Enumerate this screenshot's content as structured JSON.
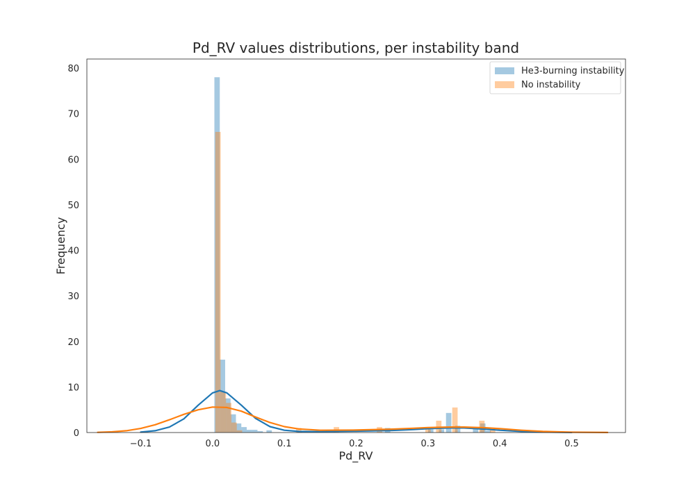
{
  "chart_data": {
    "type": "bar",
    "title": "Pd_RV values distributions, per instability band",
    "xlabel": "Pd_RV",
    "ylabel": "Frequency",
    "xlim": [
      -0.175,
      0.575
    ],
    "ylim": [
      0,
      82
    ],
    "xticks": [
      -0.1,
      0.0,
      0.1,
      0.2,
      0.3,
      0.4,
      0.5
    ],
    "xtick_labels": [
      "−0.1",
      "0.0",
      "0.1",
      "0.2",
      "0.3",
      "0.4",
      "0.5"
    ],
    "yticks": [
      0,
      10,
      20,
      30,
      40,
      50,
      60,
      70,
      80
    ],
    "grid": false,
    "legend_position": "top-right",
    "series": [
      {
        "name": "He3-burning instability",
        "color": "#1f77b4",
        "bin_width": 0.0075,
        "bins": [
          {
            "x": 0.0063,
            "y": 78
          },
          {
            "x": 0.0138,
            "y": 16
          },
          {
            "x": 0.0213,
            "y": 7.5
          },
          {
            "x": 0.0288,
            "y": 4
          },
          {
            "x": 0.0363,
            "y": 2
          },
          {
            "x": 0.0438,
            "y": 1.2
          },
          {
            "x": 0.0513,
            "y": 0.6
          },
          {
            "x": 0.0588,
            "y": 0.6
          },
          {
            "x": 0.0663,
            "y": 0.3
          },
          {
            "x": 0.0788,
            "y": 0.5
          },
          {
            "x": 0.1213,
            "y": 0.3
          },
          {
            "x": 0.2438,
            "y": 1
          },
          {
            "x": 0.3038,
            "y": 0.7
          },
          {
            "x": 0.3188,
            "y": 0.7
          },
          {
            "x": 0.3288,
            "y": 4.3
          },
          {
            "x": 0.3413,
            "y": 1.5
          },
          {
            "x": 0.3663,
            "y": 0.8
          },
          {
            "x": 0.3763,
            "y": 2
          },
          {
            "x": 0.3838,
            "y": 0.4
          }
        ],
        "kde": {
          "x": [
            -0.1,
            -0.08,
            -0.06,
            -0.04,
            -0.02,
            0.0,
            0.01,
            0.02,
            0.04,
            0.06,
            0.08,
            0.1,
            0.12,
            0.15,
            0.2,
            0.25,
            0.28,
            0.3,
            0.33,
            0.35,
            0.38,
            0.4,
            0.43,
            0.46,
            0.5
          ],
          "y": [
            0.1,
            0.4,
            1.2,
            3.0,
            6.0,
            8.7,
            9.2,
            8.7,
            6.0,
            3.1,
            1.3,
            0.5,
            0.25,
            0.2,
            0.3,
            0.45,
            0.65,
            0.85,
            1.0,
            1.0,
            0.75,
            0.5,
            0.25,
            0.1,
            0.02
          ]
        }
      },
      {
        "name": "No instability",
        "color": "#ff7f0e",
        "bin_width": 0.0075,
        "bins": [
          {
            "x": 0.0075,
            "y": 66
          },
          {
            "x": 0.015,
            "y": 9
          },
          {
            "x": 0.0225,
            "y": 6.5
          },
          {
            "x": 0.03,
            "y": 2.2
          },
          {
            "x": 0.0375,
            "y": 0.5
          },
          {
            "x": 0.12,
            "y": 1
          },
          {
            "x": 0.1725,
            "y": 1.2
          },
          {
            "x": 0.2325,
            "y": 1.2
          },
          {
            "x": 0.3,
            "y": 1
          },
          {
            "x": 0.315,
            "y": 2.6
          },
          {
            "x": 0.3375,
            "y": 5.5
          },
          {
            "x": 0.375,
            "y": 2.6
          },
          {
            "x": 0.39,
            "y": 0.5
          }
        ],
        "kde": {
          "x": [
            -0.16,
            -0.14,
            -0.12,
            -0.1,
            -0.08,
            -0.06,
            -0.04,
            -0.02,
            0.0,
            0.02,
            0.04,
            0.06,
            0.08,
            0.1,
            0.12,
            0.15,
            0.2,
            0.25,
            0.28,
            0.3,
            0.33,
            0.35,
            0.38,
            0.4,
            0.43,
            0.46,
            0.5,
            0.55
          ],
          "y": [
            0.05,
            0.15,
            0.4,
            0.9,
            1.7,
            2.8,
            4.0,
            5.0,
            5.6,
            5.5,
            4.7,
            3.4,
            2.2,
            1.3,
            0.8,
            0.5,
            0.55,
            0.75,
            0.95,
            1.1,
            1.2,
            1.2,
            1.05,
            0.85,
            0.5,
            0.25,
            0.07,
            0.01
          ]
        }
      }
    ]
  }
}
